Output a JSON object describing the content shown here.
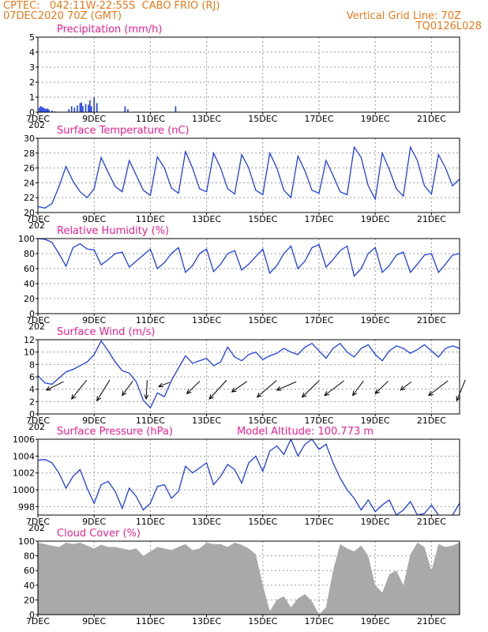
{
  "header": {
    "line1": "CPTEC:   042:11W-22:55S  CABO FRIO (RJ)",
    "line2": "07DEC2020 70Z (GMT)",
    "grid_note": "Vertical Grid Line: 70Z",
    "code": "TQ0126L028"
  },
  "colors": {
    "header": "#e8791a",
    "titles": "#e8208f",
    "series": "#1f3ee6",
    "precip": "#1f3ee6",
    "cloud": "#a9a9a9"
  },
  "x_axis": {
    "ticks": [
      7,
      9,
      11,
      13,
      15,
      17,
      19,
      21
    ],
    "tick_labels": [
      "7DEC",
      "9DEC",
      "11DEC",
      "13DEC",
      "15DEC",
      "17DEC",
      "19DEC",
      "21DEC"
    ],
    "cut_label": "202",
    "range": [
      7.0,
      22.0
    ]
  },
  "chart_data": [
    {
      "type": "bar",
      "title": "Precipitation (mm/h)",
      "ylim": [
        0,
        5
      ],
      "yticks": [
        0,
        1,
        2,
        3,
        4,
        5
      ],
      "grid": true,
      "x": [
        7.05,
        7.1,
        7.15,
        7.2,
        7.25,
        7.3,
        7.35,
        7.4,
        7.5,
        7.6,
        8.1,
        8.2,
        8.3,
        8.4,
        8.5,
        8.55,
        8.6,
        8.7,
        8.8,
        8.85,
        8.9,
        9.0,
        9.1,
        10.1,
        10.2,
        11.9
      ],
      "values": [
        0.3,
        0.4,
        0.35,
        0.3,
        0.25,
        0.2,
        0.25,
        0.15,
        0.1,
        0.05,
        0.2,
        0.4,
        0.3,
        0.45,
        0.6,
        0.65,
        0.4,
        0.55,
        0.5,
        0.8,
        0.4,
        1.0,
        0.6,
        0.4,
        0.2,
        0.4
      ]
    },
    {
      "type": "line",
      "title": "Surface Temperature (nC)",
      "ylim": [
        20,
        30
      ],
      "yticks": [
        20,
        22,
        24,
        26,
        28,
        30
      ],
      "grid": true,
      "x": [
        7.0,
        7.25,
        7.5,
        7.75,
        8.0,
        8.25,
        8.5,
        8.75,
        9.0,
        9.25,
        9.5,
        9.75,
        10.0,
        10.25,
        10.5,
        10.75,
        11.0,
        11.25,
        11.5,
        11.75,
        12.0,
        12.25,
        12.5,
        12.75,
        13.0,
        13.25,
        13.5,
        13.75,
        14.0,
        14.25,
        14.5,
        14.75,
        15.0,
        15.25,
        15.5,
        15.75,
        16.0,
        16.25,
        16.5,
        16.75,
        17.0,
        17.25,
        17.5,
        17.75,
        18.0,
        18.25,
        18.5,
        18.75,
        19.0,
        19.25,
        19.5,
        19.75,
        20.0,
        20.25,
        20.5,
        20.75,
        21.0,
        21.25,
        21.5,
        21.75,
        22.0
      ],
      "values": [
        20.8,
        20.6,
        21.2,
        23.5,
        26.2,
        24.2,
        22.8,
        22.0,
        23.2,
        27.4,
        25.4,
        23.5,
        22.8,
        27.0,
        25.0,
        23.0,
        22.3,
        27.5,
        26.0,
        23.3,
        22.6,
        28.2,
        26.0,
        23.2,
        22.8,
        28.0,
        26.0,
        23.2,
        22.5,
        27.8,
        26.0,
        23.0,
        22.4,
        28.0,
        26.0,
        23.0,
        22.0,
        27.6,
        25.6,
        23.0,
        22.6,
        27.0,
        25.0,
        22.8,
        22.4,
        28.8,
        27.4,
        23.6,
        21.8,
        28.0,
        25.8,
        23.2,
        22.2,
        28.8,
        27.0,
        23.6,
        22.5,
        27.8,
        26.0,
        23.6,
        24.5
      ]
    },
    {
      "type": "line",
      "title": "Relative Humidity (%)",
      "ylim": [
        0,
        100
      ],
      "yticks": [
        0,
        20,
        40,
        60,
        80,
        100
      ],
      "grid": true,
      "x": [
        7.0,
        7.25,
        7.5,
        7.75,
        8.0,
        8.25,
        8.5,
        8.75,
        9.0,
        9.25,
        9.5,
        9.75,
        10.0,
        10.25,
        10.5,
        10.75,
        11.0,
        11.25,
        11.5,
        11.75,
        12.0,
        12.25,
        12.5,
        12.75,
        13.0,
        13.25,
        13.5,
        13.75,
        14.0,
        14.25,
        14.5,
        14.75,
        15.0,
        15.25,
        15.5,
        15.75,
        16.0,
        16.25,
        16.5,
        16.75,
        17.0,
        17.25,
        17.5,
        17.75,
        18.0,
        18.25,
        18.5,
        18.75,
        19.0,
        19.25,
        19.5,
        19.75,
        20.0,
        20.25,
        20.5,
        20.75,
        21.0,
        21.25,
        21.5,
        21.75,
        22.0
      ],
      "values": [
        100,
        99,
        95,
        80,
        63,
        88,
        93,
        86,
        85,
        65,
        72,
        80,
        82,
        62,
        70,
        78,
        86,
        60,
        68,
        80,
        88,
        55,
        64,
        80,
        86,
        56,
        66,
        80,
        84,
        58,
        66,
        76,
        86,
        54,
        64,
        80,
        90,
        60,
        70,
        88,
        92,
        62,
        72,
        84,
        90,
        50,
        60,
        80,
        88,
        55,
        64,
        78,
        82,
        55,
        66,
        78,
        80,
        55,
        66,
        78,
        80
      ]
    },
    {
      "type": "line",
      "title": "Surface Wind (m/s)",
      "ylim": [
        0,
        12
      ],
      "yticks": [
        0,
        2,
        4,
        6,
        8,
        10,
        12
      ],
      "grid": true,
      "x": [
        7.0,
        7.25,
        7.5,
        7.75,
        8.0,
        8.25,
        8.5,
        8.75,
        9.0,
        9.25,
        9.5,
        9.75,
        10.0,
        10.25,
        10.5,
        10.75,
        11.0,
        11.25,
        11.5,
        11.75,
        12.0,
        12.25,
        12.5,
        12.75,
        13.0,
        13.25,
        13.5,
        13.75,
        14.0,
        14.25,
        14.5,
        14.75,
        15.0,
        15.25,
        15.5,
        15.75,
        16.0,
        16.25,
        16.5,
        16.75,
        17.0,
        17.25,
        17.5,
        17.75,
        18.0,
        18.25,
        18.5,
        18.75,
        19.0,
        19.25,
        19.5,
        19.75,
        20.0,
        20.25,
        20.5,
        20.75,
        21.0,
        21.25,
        21.5,
        21.75,
        22.0
      ],
      "values": [
        6.2,
        5.0,
        4.8,
        5.8,
        6.8,
        7.2,
        7.8,
        8.4,
        9.6,
        11.8,
        10.2,
        8.4,
        7.0,
        6.6,
        5.2,
        2.2,
        1.0,
        3.4,
        2.8,
        5.4,
        7.4,
        9.4,
        8.2,
        8.6,
        9.0,
        7.8,
        8.4,
        10.8,
        9.2,
        8.6,
        9.6,
        10.0,
        8.8,
        9.4,
        9.8,
        10.6,
        10.0,
        9.6,
        10.8,
        11.4,
        10.2,
        9.0,
        10.6,
        11.4,
        10.0,
        9.2,
        10.6,
        11.2,
        9.6,
        8.6,
        10.2,
        11.0,
        10.6,
        9.8,
        10.4,
        11.2,
        10.2,
        9.2,
        10.6,
        11.0,
        10.6
      ],
      "arrows": [
        {
          "x": 7.3,
          "u": 0.8,
          "v": 0.4
        },
        {
          "x": 8.2,
          "u": 0.7,
          "v": 0.9
        },
        {
          "x": 9.1,
          "u": 0.6,
          "v": 1.0
        },
        {
          "x": 10.0,
          "u": 0.5,
          "v": 0.7
        },
        {
          "x": 10.85,
          "u": 0.05,
          "v": 0.9
        },
        {
          "x": 11.3,
          "u": 0.5,
          "v": 0.2
        },
        {
          "x": 12.3,
          "u": 0.6,
          "v": 0.6
        },
        {
          "x": 13.1,
          "u": 0.8,
          "v": 0.9
        },
        {
          "x": 13.9,
          "u": 0.7,
          "v": 0.5
        },
        {
          "x": 14.8,
          "u": 0.9,
          "v": 0.8
        },
        {
          "x": 15.5,
          "u": 0.9,
          "v": 0.4
        },
        {
          "x": 16.4,
          "u": 0.8,
          "v": 0.8
        },
        {
          "x": 17.2,
          "u": 0.9,
          "v": 0.7
        },
        {
          "x": 18.2,
          "u": 0.5,
          "v": 0.7
        },
        {
          "x": 19.0,
          "u": 0.6,
          "v": 0.6
        },
        {
          "x": 19.9,
          "u": 0.5,
          "v": 0.4
        },
        {
          "x": 20.9,
          "u": 0.9,
          "v": 0.7
        },
        {
          "x": 21.9,
          "u": 0.4,
          "v": 1.0
        }
      ]
    },
    {
      "type": "line",
      "title": "Surface Pressure (hPa)",
      "annotation": "Model Altitude: 100.773 m",
      "ylim": [
        997,
        1006
      ],
      "yticks": [
        998,
        1000,
        1002,
        1004,
        1006
      ],
      "grid": true,
      "x": [
        7.0,
        7.25,
        7.5,
        7.75,
        8.0,
        8.25,
        8.5,
        8.75,
        9.0,
        9.25,
        9.5,
        9.75,
        10.0,
        10.25,
        10.5,
        10.75,
        11.0,
        11.25,
        11.5,
        11.75,
        12.0,
        12.25,
        12.5,
        12.75,
        13.0,
        13.25,
        13.5,
        13.75,
        14.0,
        14.25,
        14.5,
        14.75,
        15.0,
        15.25,
        15.5,
        15.75,
        16.0,
        16.25,
        16.5,
        16.75,
        17.0,
        17.25,
        17.5,
        17.75,
        18.0,
        18.25,
        18.5,
        18.75,
        19.0,
        19.25,
        19.5,
        19.75,
        20.0,
        20.25,
        20.5,
        20.75,
        21.0,
        21.25,
        21.5,
        21.75,
        22.0
      ],
      "values": [
        1003.5,
        1003.6,
        1003.2,
        1002.0,
        1000.2,
        1001.6,
        1002.4,
        1000.2,
        998.4,
        1000.6,
        1001.0,
        999.8,
        997.8,
        1000.2,
        999.2,
        997.6,
        998.4,
        1000.4,
        1000.6,
        999.0,
        999.8,
        1002.8,
        1002.0,
        1002.6,
        1003.2,
        1000.6,
        1001.6,
        1003.0,
        1002.4,
        1000.8,
        1003.2,
        1004.0,
        1002.2,
        1004.6,
        1005.2,
        1004.2,
        1006.0,
        1004.0,
        1005.4,
        1006.0,
        1004.8,
        1005.4,
        1003.2,
        1001.4,
        1000.0,
        999.0,
        997.6,
        998.8,
        997.4,
        998.2,
        998.8,
        997.0,
        997.6,
        998.6,
        997.0,
        997.2,
        998.2,
        997.0,
        996.6,
        997.0,
        998.4
      ]
    },
    {
      "type": "area",
      "title": "Cloud Cover (%)",
      "ylim": [
        0,
        100
      ],
      "yticks": [
        0,
        20,
        40,
        60,
        80,
        100
      ],
      "grid": true,
      "x": [
        7.0,
        7.25,
        7.5,
        7.75,
        8.0,
        8.25,
        8.5,
        8.75,
        9.0,
        9.25,
        9.5,
        9.75,
        10.0,
        10.25,
        10.5,
        10.75,
        11.0,
        11.25,
        11.5,
        11.75,
        12.0,
        12.25,
        12.5,
        12.75,
        13.0,
        13.25,
        13.5,
        13.75,
        14.0,
        14.25,
        14.5,
        14.75,
        15.0,
        15.25,
        15.5,
        15.75,
        16.0,
        16.25,
        16.5,
        16.75,
        17.0,
        17.25,
        17.5,
        17.75,
        18.0,
        18.25,
        18.5,
        18.75,
        19.0,
        19.25,
        19.5,
        19.75,
        20.0,
        20.25,
        20.5,
        20.75,
        21.0,
        21.25,
        21.5,
        21.75,
        22.0
      ],
      "values": [
        98,
        96,
        94,
        92,
        98,
        96,
        98,
        94,
        90,
        95,
        92,
        92,
        90,
        88,
        90,
        80,
        86,
        92,
        90,
        88,
        92,
        96,
        88,
        90,
        98,
        96,
        96,
        92,
        98,
        95,
        90,
        82,
        40,
        5,
        20,
        25,
        10,
        22,
        28,
        18,
        0,
        10,
        60,
        96,
        90,
        86,
        94,
        80,
        40,
        30,
        55,
        60,
        40,
        82,
        98,
        92,
        60,
        96,
        92,
        94,
        98
      ]
    }
  ]
}
